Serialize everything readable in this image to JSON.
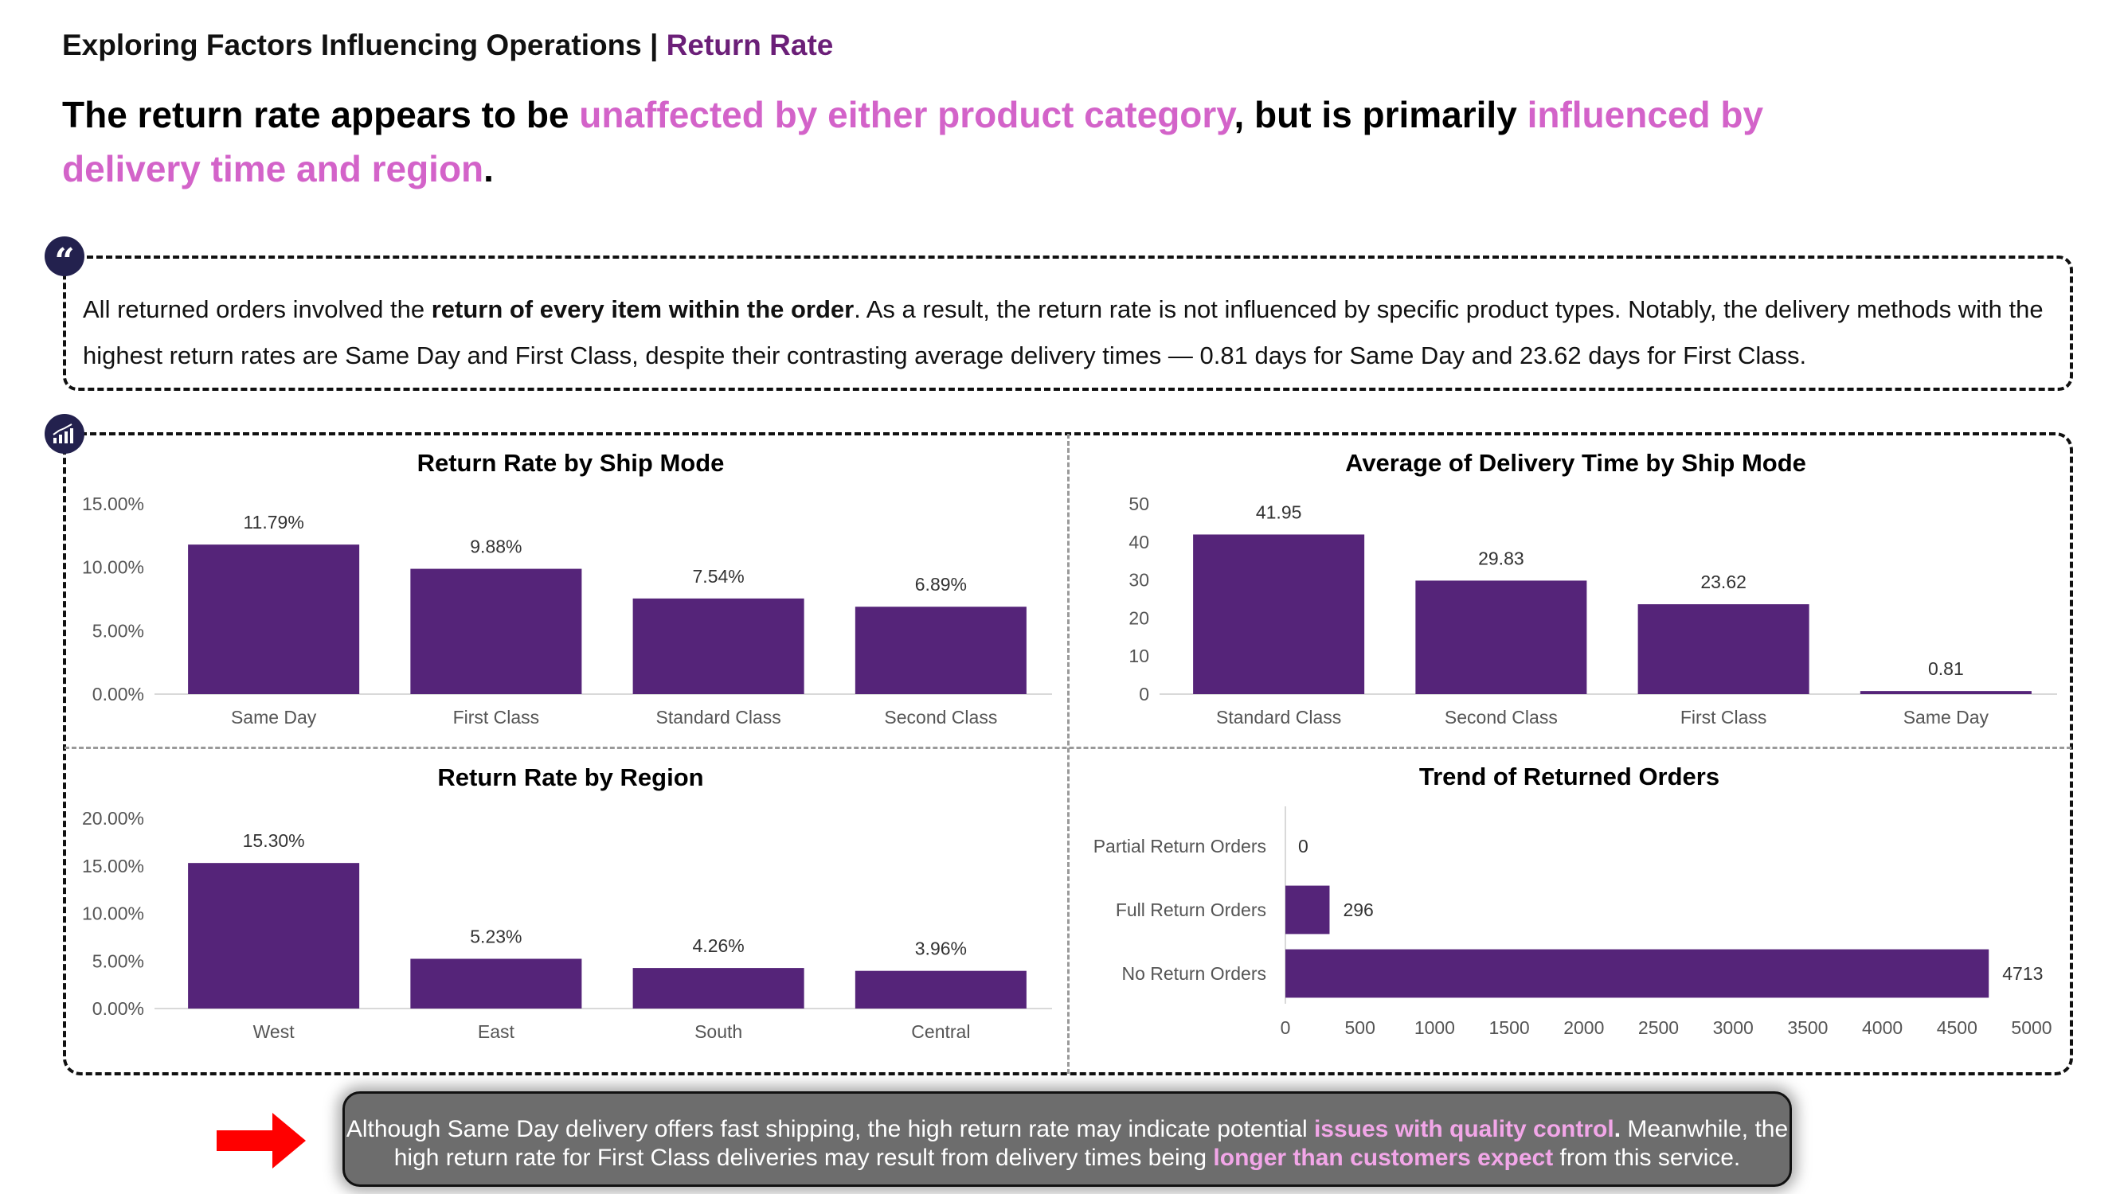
{
  "header": {
    "title_main": "Exploring Factors Influencing Operations | ",
    "title_accent": "Return Rate"
  },
  "headline": {
    "part1": "The return rate appears to be ",
    "highlight1": "unaffected by either product category",
    "part2": ", but is primarily ",
    "highlight2": "influenced by delivery time and region",
    "part3": "."
  },
  "quote": {
    "icon": "quote-icon",
    "part1": "All returned orders involved the ",
    "bold": "return of every item within the order",
    "part2": ". As a result, the return rate is not influenced by specific product types. Notably, the delivery methods with the highest return rates are Same Day and First Class, despite their contrasting average delivery times — 0.81 days for Same Day and 23.62 days for First Class."
  },
  "charts_icon": "bar-chart-icon",
  "chart_data": [
    {
      "id": "shipmode",
      "type": "bar",
      "title": "Return Rate by Ship Mode",
      "categories": [
        "Same Day",
        "First Class",
        "Standard Class",
        "Second Class"
      ],
      "values": [
        11.79,
        9.88,
        7.54,
        6.89
      ],
      "value_labels": [
        "11.79%",
        "9.88%",
        "7.54%",
        "6.89%"
      ],
      "ylim": [
        0,
        15
      ],
      "yticks": [
        0,
        5,
        10,
        15
      ],
      "ytick_labels": [
        "0.00%",
        "5.00%",
        "10.00%",
        "15.00%"
      ],
      "color": "#552479"
    },
    {
      "id": "delivery",
      "type": "bar",
      "title": "Average of Delivery Time by Ship Mode",
      "categories": [
        "Standard Class",
        "Second Class",
        "First Class",
        "Same Day"
      ],
      "values": [
        41.95,
        29.83,
        23.62,
        0.81
      ],
      "value_labels": [
        "41.95",
        "29.83",
        "23.62",
        "0.81"
      ],
      "ylim": [
        0,
        50
      ],
      "yticks": [
        0,
        10,
        20,
        30,
        40,
        50
      ],
      "ytick_labels": [
        "0",
        "10",
        "20",
        "30",
        "40",
        "50"
      ],
      "color": "#552479"
    },
    {
      "id": "region",
      "type": "bar",
      "title": "Return Rate by Region",
      "categories": [
        "West",
        "East",
        "South",
        "Central"
      ],
      "values": [
        15.3,
        5.23,
        4.26,
        3.96
      ],
      "value_labels": [
        "15.30%",
        "5.23%",
        "4.26%",
        "3.96%"
      ],
      "ylim": [
        0,
        20
      ],
      "yticks": [
        0,
        5,
        10,
        15,
        20
      ],
      "ytick_labels": [
        "0.00%",
        "5.00%",
        "10.00%",
        "15.00%",
        "20.00%"
      ],
      "color": "#552479"
    },
    {
      "id": "trend",
      "type": "bar",
      "orientation": "horizontal",
      "title": "Trend of Returned Orders",
      "categories": [
        "Partial Return Orders",
        "Full Return Orders",
        "No Return Orders"
      ],
      "values": [
        0,
        296,
        4713
      ],
      "value_labels": [
        "0",
        "296",
        "4713"
      ],
      "xlim": [
        0,
        5000
      ],
      "xticks": [
        0,
        500,
        1000,
        1500,
        2000,
        2500,
        3000,
        3500,
        4000,
        4500,
        5000
      ],
      "xtick_labels": [
        "0",
        "500",
        "1000",
        "1500",
        "2000",
        "2500",
        "3000",
        "3500",
        "4000",
        "4500",
        "5000"
      ],
      "color": "#552479"
    }
  ],
  "callout": {
    "arrow_icon": "red-arrow-icon",
    "part1": "Although Same Day delivery offers fast shipping, the high return rate may indicate potential ",
    "highlight1": "issues with quality control",
    "part2": ". ",
    "part3": "Meanwhile, the high return rate for First Class deliveries may result from delivery times being ",
    "highlight2": "longer than customers expect",
    "part4": " from this service."
  },
  "colors": {
    "accent_purple": "#6b1f78",
    "highlight_pink": "#d363c9",
    "bar_purple": "#552479",
    "badge_navy": "#23214e",
    "callout_gray": "#6d6d6d",
    "arrow_red": "#ff0000"
  }
}
